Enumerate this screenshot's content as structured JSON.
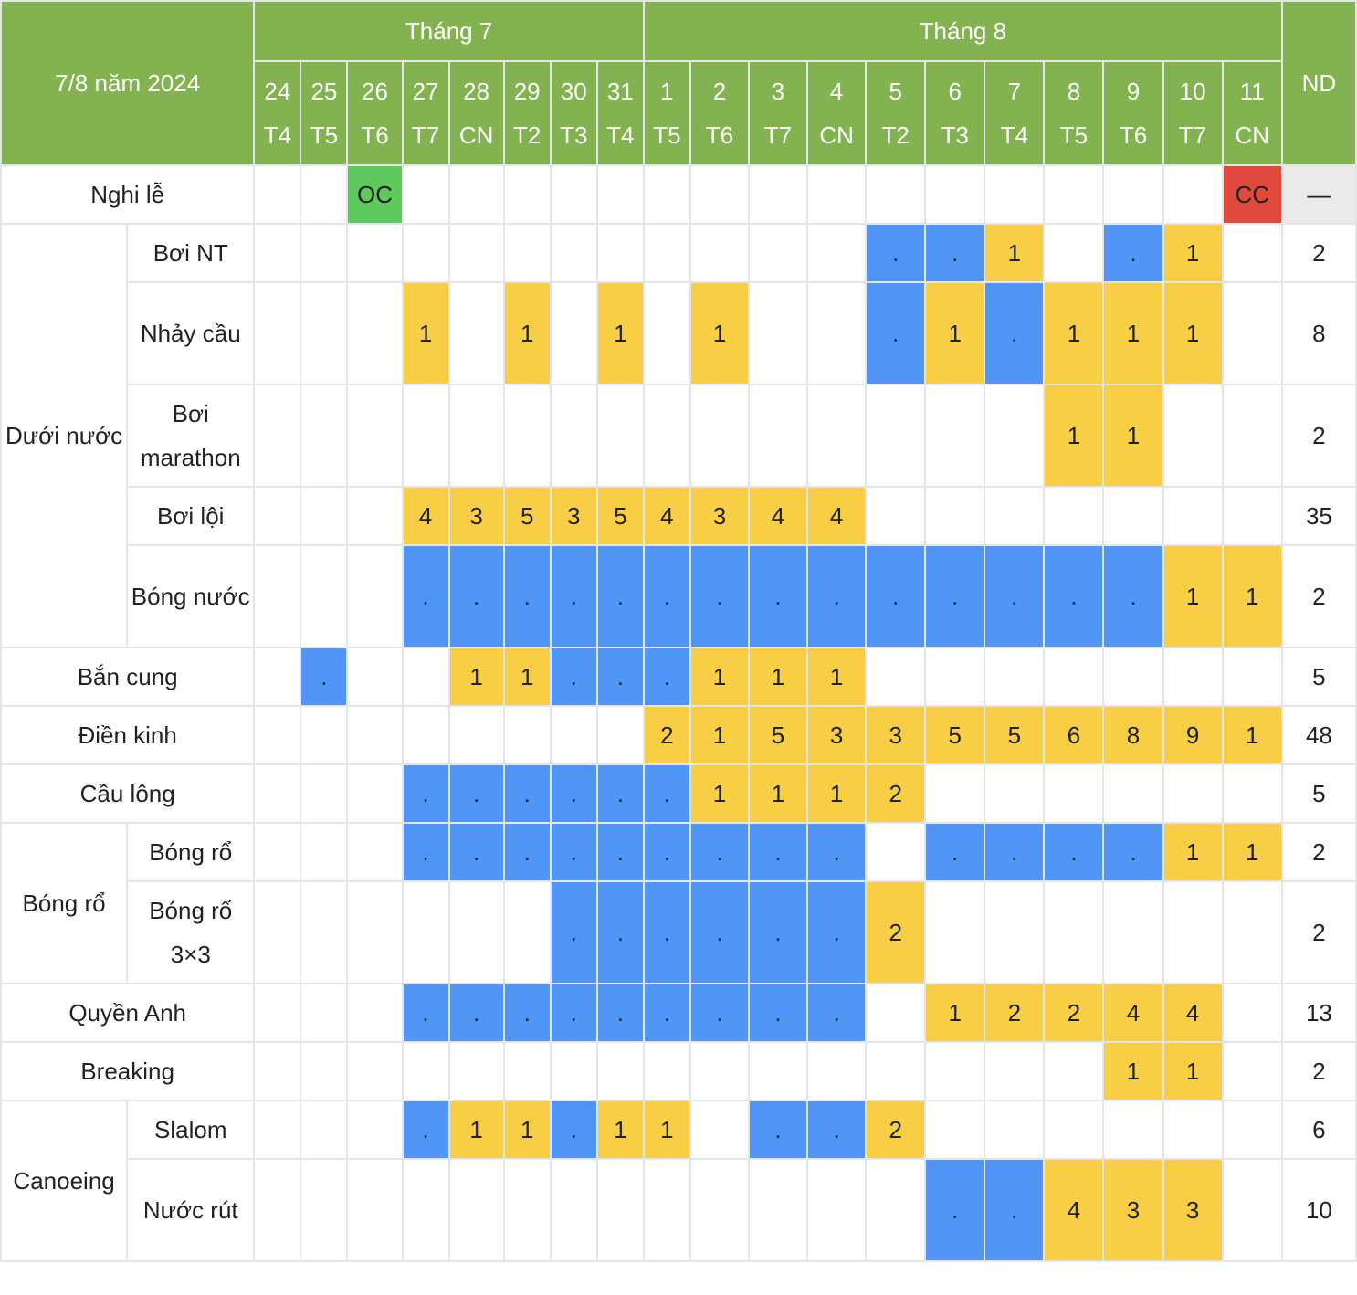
{
  "header": {
    "corner": "7/8 năm 2024",
    "months": [
      {
        "label": "Tháng 7",
        "span": 8
      },
      {
        "label": "Tháng 8",
        "span": 11
      }
    ],
    "total": "ND"
  },
  "days": [
    {
      "d": "24",
      "w": "T4"
    },
    {
      "d": "25",
      "w": "T5"
    },
    {
      "d": "26",
      "w": "T6"
    },
    {
      "d": "27",
      "w": "T7"
    },
    {
      "d": "28",
      "w": "CN"
    },
    {
      "d": "29",
      "w": "T2"
    },
    {
      "d": "30",
      "w": "T3"
    },
    {
      "d": "31",
      "w": "T4"
    },
    {
      "d": "1",
      "w": "T5"
    },
    {
      "d": "2",
      "w": "T6"
    },
    {
      "d": "3",
      "w": "T7"
    },
    {
      "d": "4",
      "w": "CN"
    },
    {
      "d": "5",
      "w": "T2"
    },
    {
      "d": "6",
      "w": "T3"
    },
    {
      "d": "7",
      "w": "T4"
    },
    {
      "d": "8",
      "w": "T5"
    },
    {
      "d": "9",
      "w": "T6"
    },
    {
      "d": "10",
      "w": "T7"
    },
    {
      "d": "11",
      "w": "CN"
    }
  ],
  "legend_colors": {
    "event": "#f8ce47",
    "competition": "#5196f7",
    "opening": "#5ec95c",
    "closing": "#e04a3c",
    "header": "#83b350"
  },
  "rows": [
    {
      "cat": "Nghi lễ",
      "cells": [
        "",
        "",
        "OC",
        "",
        "",
        "",
        "",
        "",
        "",
        "",
        "",
        "",
        "",
        "",
        "",
        "",
        "",
        "",
        "CC"
      ],
      "total": "—",
      "h": "r1"
    },
    {
      "cat": "Dưới nước",
      "rowspan": 5,
      "sub": "Bơi NT",
      "cells": [
        "",
        "",
        "",
        "",
        "",
        "",
        "",
        "",
        "",
        "",
        "",
        "",
        ".",
        ".",
        "1",
        "",
        ".",
        "1",
        ""
      ],
      "total": "2",
      "h": "r1"
    },
    {
      "sub": "Nhảy cầu",
      "cells": [
        "",
        "",
        "",
        "1",
        "",
        "1",
        "",
        "1",
        "",
        "1",
        "",
        "",
        ".",
        "1",
        ".",
        "1",
        "1",
        "1",
        ""
      ],
      "total": "8",
      "h": "r2"
    },
    {
      "sub": "Bơi marathon",
      "cells": [
        "",
        "",
        "",
        "",
        "",
        "",
        "",
        "",
        "",
        "",
        "",
        "",
        "",
        "",
        "",
        "1",
        "1",
        "",
        ""
      ],
      "total": "2",
      "h": "r2"
    },
    {
      "sub": "Bơi lội",
      "cells": [
        "",
        "",
        "",
        "4",
        "3",
        "5",
        "3",
        "5",
        "4",
        "3",
        "4",
        "4",
        "",
        "",
        "",
        "",
        "",
        "",
        ""
      ],
      "total": "35",
      "h": "r1"
    },
    {
      "sub": "Bóng nước",
      "cells": [
        "",
        "",
        "",
        ".",
        ".",
        ".",
        ".",
        ".",
        ".",
        ".",
        ".",
        ".",
        ".",
        ".",
        ".",
        ".",
        ".",
        "1",
        "1"
      ],
      "total": "2",
      "h": "r2"
    },
    {
      "cat": "Bắn cung",
      "cells": [
        "",
        ".",
        "",
        "",
        "1",
        "1",
        ".",
        ".",
        ".",
        "1",
        "1",
        "1",
        "",
        "",
        "",
        "",
        "",
        "",
        ""
      ],
      "total": "5",
      "h": "r1"
    },
    {
      "cat": "Điền kinh",
      "cells": [
        "",
        "",
        "",
        "",
        "",
        "",
        "",
        "",
        "2",
        "1",
        "5",
        "3",
        "3",
        "5",
        "5",
        "6",
        "8",
        "9",
        "1"
      ],
      "total": "48",
      "h": "r1"
    },
    {
      "cat": "Cầu lông",
      "cells": [
        "",
        "",
        "",
        ".",
        ".",
        ".",
        ".",
        ".",
        ".",
        "1",
        "1",
        "1",
        "2",
        "",
        "",
        "",
        "",
        "",
        ""
      ],
      "total": "5",
      "h": "r1"
    },
    {
      "cat": "Bóng rổ",
      "rowspan": 2,
      "sub": "Bóng rổ",
      "cells": [
        "",
        "",
        "",
        ".",
        ".",
        ".",
        ".",
        ".",
        ".",
        ".",
        ".",
        ".",
        "",
        ".",
        ".",
        ".",
        ".",
        "1",
        "1"
      ],
      "total": "2",
      "h": "r1"
    },
    {
      "sub": "Bóng rổ 3×3",
      "cells": [
        "",
        "",
        "",
        "",
        "",
        "",
        ".",
        ".",
        ".",
        ".",
        ".",
        ".",
        "2",
        "",
        "",
        "",
        "",
        "",
        ""
      ],
      "total": "2",
      "h": "r2"
    },
    {
      "cat": "Quyền Anh",
      "cells": [
        "",
        "",
        "",
        ".",
        ".",
        ".",
        ".",
        ".",
        ".",
        ".",
        ".",
        ".",
        "",
        "1",
        "2",
        "2",
        "4",
        "4",
        ""
      ],
      "total": "13",
      "h": "r1"
    },
    {
      "cat": "Breaking",
      "cells": [
        "",
        "",
        "",
        "",
        "",
        "",
        "",
        "",
        "",
        "",
        "",
        "",
        "",
        "",
        "",
        "",
        "1",
        "1",
        ""
      ],
      "total": "2",
      "h": "r1"
    },
    {
      "cat": "Canoeing",
      "rowspan": 2,
      "sub": "Slalom",
      "cells": [
        "",
        "",
        "",
        ".",
        "1",
        "1",
        ".",
        "1",
        "1",
        "",
        ".",
        ".",
        "2",
        "",
        "",
        "",
        "",
        "",
        ""
      ],
      "total": "6",
      "h": "r1"
    },
    {
      "sub": "Nước rút",
      "cells": [
        "",
        "",
        "",
        "",
        "",
        "",
        "",
        "",
        "",
        "",
        "",
        "",
        "",
        ".",
        ".",
        "4",
        "3",
        "3",
        ""
      ],
      "total": "10",
      "h": "rlast"
    }
  ]
}
